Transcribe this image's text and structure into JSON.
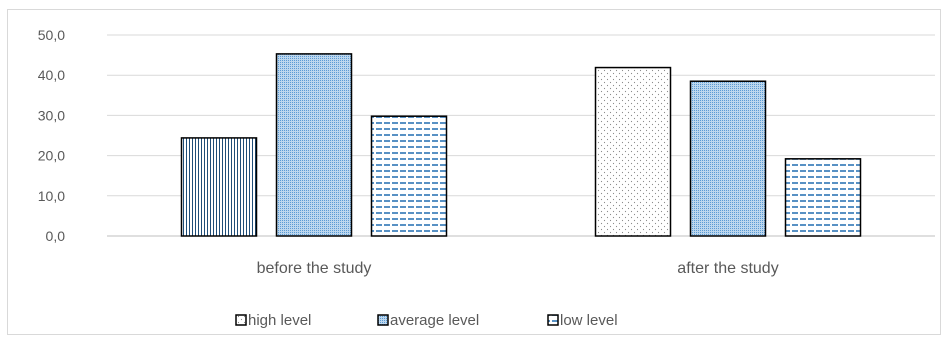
{
  "chart_data": {
    "type": "bar",
    "categories": [
      "before the study",
      "after the study"
    ],
    "series": [
      {
        "name": "high level",
        "values": [
          24.4,
          41.9
        ],
        "color": "#1f4e79"
      },
      {
        "name": "average level",
        "values": [
          45.3,
          38.5
        ],
        "color": "#9dc3e6"
      },
      {
        "name": "low level",
        "values": [
          29.8,
          19.2
        ],
        "color": "#2e75b6"
      }
    ],
    "y_ticks": [
      "0,0",
      "10,0",
      "20,0",
      "30,0",
      "40,0",
      "50,0"
    ],
    "ylim": [
      0,
      50
    ],
    "grid": true,
    "legend_position": "bottom"
  }
}
